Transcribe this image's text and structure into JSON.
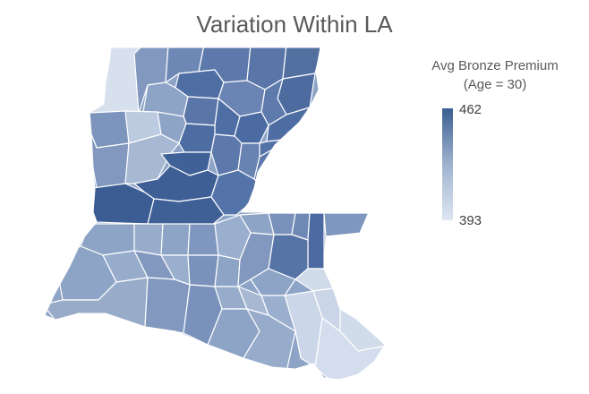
{
  "title": "Variation Within LA",
  "legend": {
    "title_line1": "Avg Bronze Premium",
    "title_line2": "(Age = 30)",
    "max_label": "462",
    "min_label": "393",
    "max_color": "#3b5f91",
    "min_color": "#dde6f1"
  },
  "map": {
    "state": "Louisiana",
    "color_scale": {
      "min": 393,
      "max": 462,
      "colors": [
        "#dde6f1",
        "#3b5f91"
      ]
    },
    "parish_shades": [
      "light",
      "mid",
      "mid-dark",
      "dark",
      "darkest"
    ]
  }
}
